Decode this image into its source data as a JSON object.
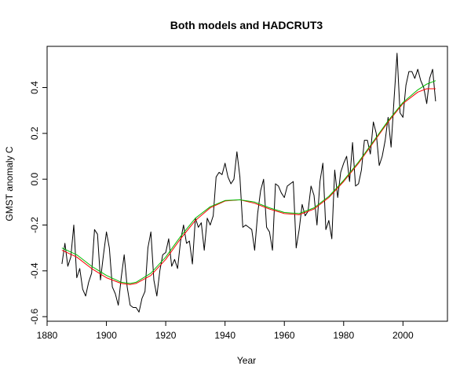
{
  "chart_data": {
    "type": "line",
    "title": "Both models and HADCRUT3",
    "xlabel": "Year",
    "ylabel": "GMST anomaly C",
    "xlim": [
      1880,
      2015
    ],
    "ylim": [
      -0.62,
      0.58
    ],
    "xticks": [
      1880,
      1900,
      1920,
      1940,
      1960,
      1980,
      2000
    ],
    "yticks": [
      -0.6,
      -0.4,
      -0.2,
      0.0,
      0.2,
      0.4
    ],
    "ytick_labels": [
      "-0.6",
      "-0.4",
      "-0.2",
      "0.0",
      "0.2",
      "0.4"
    ],
    "grid": false,
    "legend": "none",
    "series": [
      {
        "color": "#000000",
        "points": [
          [
            1885,
            -0.37
          ],
          [
            1886,
            -0.28
          ],
          [
            1887,
            -0.38
          ],
          [
            1888,
            -0.34
          ],
          [
            1889,
            -0.2
          ],
          [
            1890,
            -0.43
          ],
          [
            1891,
            -0.39
          ],
          [
            1892,
            -0.48
          ],
          [
            1893,
            -0.51
          ],
          [
            1894,
            -0.45
          ],
          [
            1895,
            -0.41
          ],
          [
            1896,
            -0.22
          ],
          [
            1897,
            -0.24
          ],
          [
            1898,
            -0.44
          ],
          [
            1899,
            -0.33
          ],
          [
            1900,
            -0.23
          ],
          [
            1901,
            -0.3
          ],
          [
            1902,
            -0.47
          ],
          [
            1903,
            -0.5
          ],
          [
            1904,
            -0.55
          ],
          [
            1905,
            -0.43
          ],
          [
            1906,
            -0.33
          ],
          [
            1907,
            -0.47
          ],
          [
            1908,
            -0.55
          ],
          [
            1909,
            -0.56
          ],
          [
            1910,
            -0.56
          ],
          [
            1911,
            -0.58
          ],
          [
            1912,
            -0.52
          ],
          [
            1913,
            -0.49
          ],
          [
            1914,
            -0.3
          ],
          [
            1915,
            -0.23
          ],
          [
            1916,
            -0.44
          ],
          [
            1917,
            -0.51
          ],
          [
            1918,
            -0.4
          ],
          [
            1919,
            -0.33
          ],
          [
            1920,
            -0.32
          ],
          [
            1921,
            -0.26
          ],
          [
            1922,
            -0.38
          ],
          [
            1923,
            -0.35
          ],
          [
            1924,
            -0.39
          ],
          [
            1925,
            -0.27
          ],
          [
            1926,
            -0.2
          ],
          [
            1927,
            -0.28
          ],
          [
            1928,
            -0.27
          ],
          [
            1929,
            -0.37
          ],
          [
            1930,
            -0.17
          ],
          [
            1931,
            -0.21
          ],
          [
            1932,
            -0.19
          ],
          [
            1933,
            -0.31
          ],
          [
            1934,
            -0.17
          ],
          [
            1935,
            -0.2
          ],
          [
            1936,
            -0.16
          ],
          [
            1937,
            0.01
          ],
          [
            1938,
            0.03
          ],
          [
            1939,
            0.02
          ],
          [
            1940,
            0.07
          ],
          [
            1941,
            0.01
          ],
          [
            1942,
            -0.02
          ],
          [
            1943,
            0.0
          ],
          [
            1944,
            0.12
          ],
          [
            1945,
            0.01
          ],
          [
            1946,
            -0.21
          ],
          [
            1947,
            -0.2
          ],
          [
            1948,
            -0.21
          ],
          [
            1949,
            -0.22
          ],
          [
            1950,
            -0.31
          ],
          [
            1951,
            -0.15
          ],
          [
            1952,
            -0.05
          ],
          [
            1953,
            0.0
          ],
          [
            1954,
            -0.21
          ],
          [
            1955,
            -0.23
          ],
          [
            1956,
            -0.31
          ],
          [
            1957,
            -0.02
          ],
          [
            1958,
            -0.03
          ],
          [
            1959,
            -0.06
          ],
          [
            1960,
            -0.08
          ],
          [
            1961,
            -0.03
          ],
          [
            1962,
            -0.02
          ],
          [
            1963,
            -0.01
          ],
          [
            1964,
            -0.3
          ],
          [
            1965,
            -0.22
          ],
          [
            1966,
            -0.11
          ],
          [
            1967,
            -0.16
          ],
          [
            1968,
            -0.14
          ],
          [
            1969,
            -0.03
          ],
          [
            1970,
            -0.07
          ],
          [
            1971,
            -0.2
          ],
          [
            1972,
            -0.01
          ],
          [
            1973,
            0.07
          ],
          [
            1974,
            -0.22
          ],
          [
            1975,
            -0.18
          ],
          [
            1976,
            -0.26
          ],
          [
            1977,
            0.04
          ],
          [
            1978,
            -0.08
          ],
          [
            1979,
            0.03
          ],
          [
            1980,
            0.07
          ],
          [
            1981,
            0.1
          ],
          [
            1982,
            -0.01
          ],
          [
            1983,
            0.16
          ],
          [
            1984,
            -0.03
          ],
          [
            1985,
            -0.02
          ],
          [
            1986,
            0.04
          ],
          [
            1987,
            0.17
          ],
          [
            1988,
            0.17
          ],
          [
            1989,
            0.11
          ],
          [
            1990,
            0.25
          ],
          [
            1991,
            0.2
          ],
          [
            1992,
            0.06
          ],
          [
            1993,
            0.1
          ],
          [
            1994,
            0.17
          ],
          [
            1995,
            0.27
          ],
          [
            1996,
            0.14
          ],
          [
            1997,
            0.35
          ],
          [
            1998,
            0.55
          ],
          [
            1999,
            0.29
          ],
          [
            2000,
            0.27
          ],
          [
            2001,
            0.41
          ],
          [
            2002,
            0.47
          ],
          [
            2003,
            0.47
          ],
          [
            2004,
            0.44
          ],
          [
            2005,
            0.48
          ],
          [
            2006,
            0.43
          ],
          [
            2007,
            0.4
          ],
          [
            2008,
            0.33
          ],
          [
            2009,
            0.44
          ],
          [
            2010,
            0.48
          ],
          [
            2011,
            0.34
          ]
        ]
      },
      {
        "color": "#ff0000",
        "points": [
          [
            1885,
            -0.31
          ],
          [
            1890,
            -0.34
          ],
          [
            1895,
            -0.39
          ],
          [
            1900,
            -0.43
          ],
          [
            1905,
            -0.455
          ],
          [
            1908,
            -0.46
          ],
          [
            1910,
            -0.455
          ],
          [
            1915,
            -0.42
          ],
          [
            1920,
            -0.35
          ],
          [
            1925,
            -0.26
          ],
          [
            1930,
            -0.18
          ],
          [
            1935,
            -0.125
          ],
          [
            1940,
            -0.095
          ],
          [
            1945,
            -0.09
          ],
          [
            1950,
            -0.105
          ],
          [
            1955,
            -0.13
          ],
          [
            1960,
            -0.15
          ],
          [
            1965,
            -0.155
          ],
          [
            1970,
            -0.13
          ],
          [
            1975,
            -0.08
          ],
          [
            1980,
            -0.01
          ],
          [
            1985,
            0.07
          ],
          [
            1990,
            0.16
          ],
          [
            1995,
            0.25
          ],
          [
            2000,
            0.33
          ],
          [
            2005,
            0.38
          ],
          [
            2008,
            0.395
          ],
          [
            2011,
            0.395
          ]
        ]
      },
      {
        "color": "#00bb00",
        "points": [
          [
            1885,
            -0.3
          ],
          [
            1890,
            -0.33
          ],
          [
            1895,
            -0.38
          ],
          [
            1900,
            -0.42
          ],
          [
            1905,
            -0.45
          ],
          [
            1908,
            -0.455
          ],
          [
            1910,
            -0.45
          ],
          [
            1915,
            -0.41
          ],
          [
            1920,
            -0.34
          ],
          [
            1925,
            -0.25
          ],
          [
            1930,
            -0.17
          ],
          [
            1935,
            -0.12
          ],
          [
            1940,
            -0.093
          ],
          [
            1945,
            -0.09
          ],
          [
            1950,
            -0.1
          ],
          [
            1955,
            -0.125
          ],
          [
            1960,
            -0.145
          ],
          [
            1965,
            -0.15
          ],
          [
            1970,
            -0.125
          ],
          [
            1975,
            -0.075
          ],
          [
            1980,
            -0.005
          ],
          [
            1985,
            0.075
          ],
          [
            1990,
            0.165
          ],
          [
            1995,
            0.255
          ],
          [
            2000,
            0.335
          ],
          [
            2005,
            0.39
          ],
          [
            2008,
            0.415
          ],
          [
            2011,
            0.43
          ]
        ]
      }
    ]
  }
}
